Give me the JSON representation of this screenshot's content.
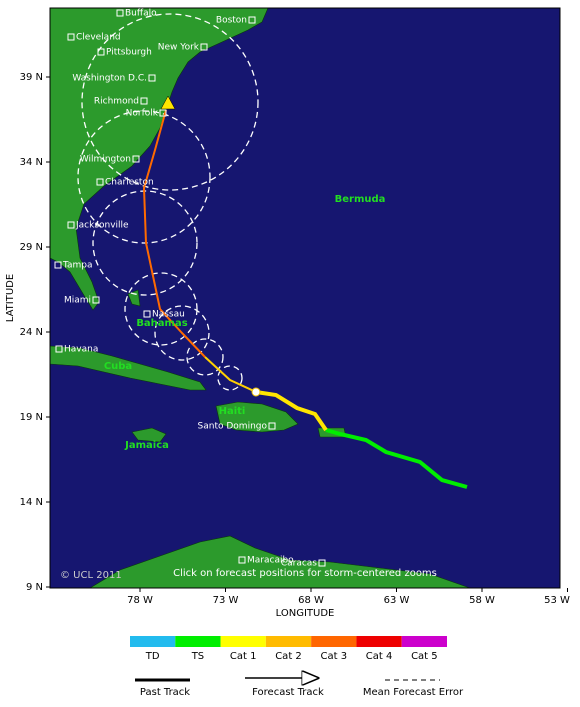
{
  "map": {
    "yticks": [
      "39 N",
      "34 N",
      "29 N",
      "24 N",
      "19 N",
      "14 N",
      "9 N"
    ],
    "xticks": [
      "78 W",
      "73 W",
      "68 W",
      "63 W",
      "58 W",
      "53 W"
    ],
    "x_label": "LONGITUDE",
    "y_label": "LATITUDE",
    "cities": [
      "Buffalo",
      "Boston",
      "Cleveland",
      "Pittsburgh",
      "New York",
      "Washington D.C.",
      "Richmond",
      "Norfolk",
      "Wilmington",
      "Charleston",
      "Jacksonville",
      "Tampa",
      "Miami",
      "Nassau",
      "Havana",
      "Santo Domingo",
      "Maracaibo",
      "Caracas"
    ],
    "regions": [
      "Bermuda",
      "Bahamas",
      "Cuba",
      "Haiti",
      "Jamaica"
    ],
    "copyright": "© UCL 2011",
    "note": "Click on forecast positions for storm-centered zooms"
  },
  "legend": {
    "categories": [
      "TD",
      "TS",
      "Cat 1",
      "Cat 2",
      "Cat 3",
      "Cat 4",
      "Cat 5"
    ],
    "items": [
      "Past Track",
      "Forecast Track",
      "Mean Forecast Error"
    ]
  }
}
